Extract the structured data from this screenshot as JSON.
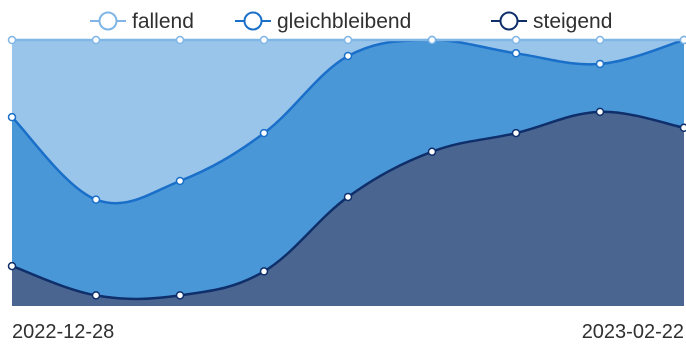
{
  "chart_data": {
    "type": "area",
    "stacked": true,
    "normalized": true,
    "smooth": true,
    "x": [
      "2022-12-28",
      "2023-01-04",
      "2023-01-11",
      "2023-01-18",
      "2023-01-25",
      "2023-02-01",
      "2023-02-08",
      "2023-02-15",
      "2023-02-22"
    ],
    "x_tick_labels": [
      "2022-12-28",
      "2023-02-22"
    ],
    "ylim": [
      0,
      100
    ],
    "grid": false,
    "legend": "top",
    "series": [
      {
        "name": "steigend",
        "color": "#0f2f6b",
        "fill": "#4a6690",
        "values": [
          15,
          4,
          4,
          13,
          41,
          58,
          65,
          73,
          67
        ]
      },
      {
        "name": "gleichbleibend",
        "color": "#1a6fc9",
        "fill": "#4a97d8",
        "values": [
          56,
          36,
          43,
          52,
          53,
          42,
          30,
          18,
          33
        ]
      },
      {
        "name": "fallend",
        "color": "#7fb6e6",
        "fill": "#9ac5ea",
        "values": [
          29,
          60,
          53,
          35,
          6,
          0,
          5,
          9,
          0
        ]
      }
    ]
  }
}
